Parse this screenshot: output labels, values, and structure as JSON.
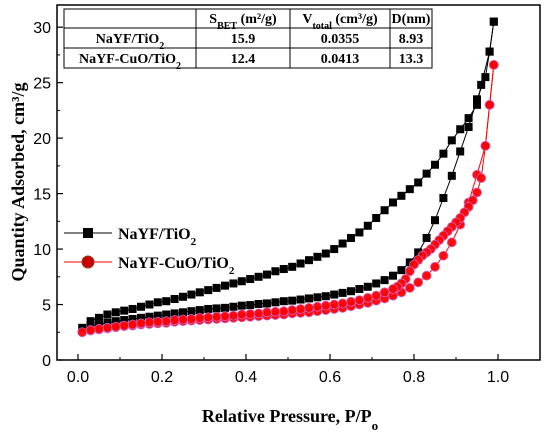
{
  "chart_data": {
    "type": "line",
    "xlabel": "Relative Pressure, P/P",
    "xlabel_sub": "o",
    "ylabel": "Quantity Adsorbed, cm³/g",
    "xlim": [
      -0.05,
      1.1
    ],
    "ylim": [
      0,
      32
    ],
    "xticks": [
      "0.0",
      "0.2",
      "0.4",
      "0.6",
      "0.8",
      "1.0"
    ],
    "yticks": [
      "0",
      "5",
      "10",
      "15",
      "20",
      "25",
      "30"
    ],
    "legend_position": "center-left",
    "grid": false,
    "series": [
      {
        "name": "NaYF/TiO",
        "name_sub": "2",
        "color": "#000000",
        "marker": "square",
        "adsorption": {
          "x": [
            0.01,
            0.03,
            0.05,
            0.07,
            0.09,
            0.11,
            0.13,
            0.15,
            0.17,
            0.19,
            0.21,
            0.23,
            0.25,
            0.27,
            0.29,
            0.31,
            0.33,
            0.35,
            0.37,
            0.39,
            0.41,
            0.43,
            0.45,
            0.47,
            0.49,
            0.51,
            0.53,
            0.55,
            0.57,
            0.59,
            0.61,
            0.63,
            0.65,
            0.67,
            0.69,
            0.71,
            0.73,
            0.75,
            0.77,
            0.79,
            0.81,
            0.83,
            0.85,
            0.87,
            0.89,
            0.91,
            0.93,
            0.95,
            0.97,
            0.98,
            0.99
          ],
          "y": [
            2.9,
            3.05,
            3.2,
            3.35,
            3.5,
            3.6,
            3.7,
            3.8,
            3.9,
            4.0,
            4.1,
            4.2,
            4.3,
            4.4,
            4.5,
            4.6,
            4.65,
            4.7,
            4.8,
            4.9,
            4.95,
            5.05,
            5.1,
            5.2,
            5.3,
            5.35,
            5.45,
            5.55,
            5.65,
            5.75,
            5.9,
            6.05,
            6.2,
            6.4,
            6.6,
            6.9,
            7.2,
            7.6,
            8.1,
            8.8,
            9.7,
            11.0,
            12.6,
            14.6,
            16.6,
            18.8,
            21.0,
            23.5,
            25.5,
            27.8,
            30.5
          ]
        },
        "desorption": {
          "x": [
            0.99,
            0.98,
            0.96,
            0.95,
            0.93,
            0.91,
            0.89,
            0.87,
            0.85,
            0.83,
            0.81,
            0.79,
            0.77,
            0.75,
            0.73,
            0.71,
            0.69,
            0.67,
            0.65,
            0.63,
            0.61,
            0.59,
            0.57,
            0.55,
            0.53,
            0.51,
            0.49,
            0.47,
            0.45,
            0.43,
            0.41,
            0.39,
            0.37,
            0.35,
            0.33,
            0.31,
            0.29,
            0.27,
            0.25,
            0.23,
            0.21,
            0.19,
            0.17,
            0.15,
            0.13,
            0.11,
            0.09,
            0.07,
            0.05,
            0.03
          ],
          "y": [
            30.5,
            27.8,
            24.8,
            23.0,
            21.8,
            20.8,
            19.8,
            18.6,
            17.6,
            16.8,
            16.0,
            15.4,
            14.8,
            14.2,
            13.5,
            12.8,
            12.1,
            11.5,
            11.0,
            10.5,
            10.0,
            9.6,
            9.3,
            9.0,
            8.7,
            8.4,
            8.2,
            8.0,
            7.7,
            7.5,
            7.3,
            7.1,
            6.9,
            6.7,
            6.5,
            6.3,
            6.1,
            5.9,
            5.7,
            5.5,
            5.3,
            5.2,
            5.0,
            4.8,
            4.6,
            4.45,
            4.3,
            4.1,
            3.8,
            3.5
          ]
        }
      },
      {
        "name": "NaYF-CuO/TiO",
        "name_sub": "2",
        "color": "#ff0000",
        "marker": "circle",
        "adsorption": {
          "x": [
            0.01,
            0.03,
            0.05,
            0.07,
            0.09,
            0.11,
            0.13,
            0.15,
            0.17,
            0.19,
            0.21,
            0.23,
            0.25,
            0.27,
            0.29,
            0.31,
            0.33,
            0.35,
            0.37,
            0.39,
            0.41,
            0.43,
            0.45,
            0.47,
            0.49,
            0.51,
            0.53,
            0.55,
            0.57,
            0.59,
            0.61,
            0.63,
            0.65,
            0.67,
            0.69,
            0.71,
            0.73,
            0.75,
            0.77,
            0.79,
            0.81,
            0.83,
            0.85,
            0.87,
            0.89,
            0.91,
            0.93,
            0.95,
            0.97,
            0.98,
            0.99
          ],
          "y": [
            2.5,
            2.65,
            2.75,
            2.85,
            2.95,
            3.05,
            3.1,
            3.2,
            3.25,
            3.3,
            3.35,
            3.45,
            3.5,
            3.55,
            3.6,
            3.65,
            3.7,
            3.75,
            3.8,
            3.85,
            3.9,
            3.95,
            4.0,
            4.05,
            4.1,
            4.2,
            4.25,
            4.3,
            4.4,
            4.5,
            4.6,
            4.7,
            4.85,
            5.0,
            5.15,
            5.35,
            5.55,
            5.8,
            6.1,
            6.5,
            7.0,
            7.6,
            8.4,
            9.4,
            10.6,
            12.2,
            14.2,
            16.7,
            19.3,
            23.0,
            26.6
          ]
        },
        "desorption": {
          "x": [
            0.99,
            0.98,
            0.97,
            0.96,
            0.95,
            0.94,
            0.93,
            0.92,
            0.91,
            0.9,
            0.89,
            0.88,
            0.87,
            0.86,
            0.85,
            0.84,
            0.83,
            0.82,
            0.81,
            0.8,
            0.79,
            0.78,
            0.77,
            0.76,
            0.75,
            0.73,
            0.71,
            0.69,
            0.67,
            0.65,
            0.63,
            0.61,
            0.59,
            0.57,
            0.55,
            0.53,
            0.51,
            0.49,
            0.47,
            0.45,
            0.43,
            0.41,
            0.39,
            0.37,
            0.35,
            0.33,
            0.31,
            0.29,
            0.27,
            0.25,
            0.23,
            0.21,
            0.19,
            0.17,
            0.15,
            0.13,
            0.11,
            0.09,
            0.07,
            0.05,
            0.03
          ],
          "y": [
            26.6,
            23.0,
            19.3,
            16.4,
            15.1,
            14.4,
            13.8,
            13.3,
            12.8,
            12.4,
            12.0,
            11.6,
            11.2,
            10.8,
            10.4,
            10.0,
            9.7,
            9.4,
            9.0,
            8.6,
            8.0,
            7.3,
            6.9,
            6.6,
            6.4,
            6.1,
            5.8,
            5.6,
            5.4,
            5.25,
            5.1,
            5.0,
            4.9,
            4.8,
            4.7,
            4.6,
            4.5,
            4.4,
            4.35,
            4.3,
            4.2,
            4.15,
            4.1,
            4.0,
            3.95,
            3.9,
            3.85,
            3.8,
            3.7,
            3.65,
            3.6,
            3.5,
            3.45,
            3.4,
            3.3,
            3.2,
            3.1,
            3.0,
            2.9,
            2.8,
            2.7
          ]
        }
      }
    ],
    "inset_table": {
      "headers": [
        {
          "main": "",
          "sub": "",
          "unit": ""
        },
        {
          "main": "S",
          "sub": "BET",
          "unit": " (m²/g)"
        },
        {
          "main": "V",
          "sub": "total",
          "unit": " (cm³/g)"
        },
        {
          "main": "D(nm)",
          "sub": "",
          "unit": ""
        }
      ],
      "rows": [
        {
          "sample": "NaYF/TiO",
          "sample_sub": "2",
          "values": [
            "15.9",
            "0.0355",
            "8.93"
          ]
        },
        {
          "sample": "NaYF-CuO/TiO",
          "sample_sub": "2",
          "values": [
            "12.4",
            "0.0413",
            "13.3"
          ]
        }
      ]
    }
  }
}
